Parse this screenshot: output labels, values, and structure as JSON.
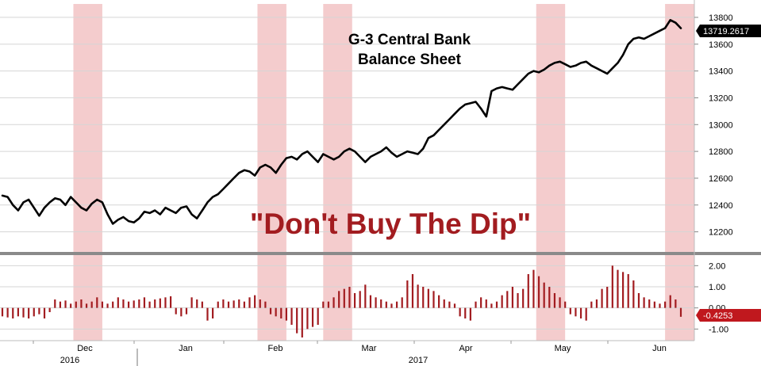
{
  "chart_data": [
    {
      "type": "line",
      "title": "G-3 Central Bank",
      "subtitle": "Balance Sheet",
      "annotation": "\"Don't Buy The Dip\"",
      "ylim": [
        12050,
        13900
      ],
      "yticks": [
        "12200",
        "12400",
        "12600",
        "12800",
        "13000",
        "13200",
        "13400",
        "13600",
        "13800"
      ],
      "last_value_label": "13719.2617",
      "line_color": "#000000",
      "grid": true,
      "x_index_range": [
        0,
        128
      ],
      "series": [
        {
          "values": [
            12470,
            12460,
            12400,
            12360,
            12420,
            12440,
            12380,
            12320,
            12380,
            12420,
            12450,
            12440,
            12400,
            12460,
            12420,
            12380,
            12360,
            12410,
            12440,
            12420,
            12330,
            12260,
            12290,
            12310,
            12280,
            12270,
            12300,
            12350,
            12340,
            12360,
            12330,
            12380,
            12360,
            12340,
            12380,
            12390,
            12330,
            12300,
            12360,
            12420,
            12460,
            12480,
            12520,
            12560,
            12600,
            12640,
            12660,
            12650,
            12620,
            12680,
            12700,
            12680,
            12640,
            12700,
            12750,
            12760,
            12740,
            12780,
            12800,
            12760,
            12720,
            12780,
            12760,
            12740,
            12760,
            12800,
            12820,
            12800,
            12760,
            12720,
            12760,
            12780,
            12800,
            12830,
            12790,
            12760,
            12780,
            12800,
            12790,
            12780,
            12820,
            12900,
            12920,
            12960,
            13000,
            13040,
            13080,
            13120,
            13150,
            13160,
            13170,
            13120,
            13060,
            13250,
            13270,
            13280,
            13270,
            13260,
            13300,
            13340,
            13380,
            13400,
            13390,
            13410,
            13440,
            13460,
            13470,
            13450,
            13430,
            13440,
            13460,
            13470,
            13440,
            13420,
            13400,
            13380,
            13420,
            13460,
            13520,
            13600,
            13640,
            13650,
            13640,
            13660,
            13680,
            13700,
            13720,
            13780,
            13760,
            13719
          ]
        }
      ],
      "highlight_periods": [
        {
          "start": 13.5,
          "end": 19.0
        },
        {
          "start": 48.5,
          "end": 54.0
        },
        {
          "start": 61.0,
          "end": 66.5
        },
        {
          "start": 101.5,
          "end": 107.0
        },
        {
          "start": 126.0,
          "end": 131.5
        }
      ],
      "highlight_color": "#f4cccd"
    },
    {
      "type": "bar",
      "ylim": [
        -1.55,
        2.5
      ],
      "yticks": [
        "-1.00",
        "0.00",
        "1.00",
        "2.00"
      ],
      "last_value_label": "-0.4253",
      "bar_color": "#a21c20",
      "grid": true,
      "series": [
        {
          "values": [
            -0.4,
            -0.45,
            -0.5,
            -0.4,
            -0.45,
            -0.5,
            -0.4,
            -0.3,
            -0.5,
            -0.2,
            0.4,
            0.3,
            0.35,
            0.2,
            0.3,
            0.4,
            0.2,
            0.3,
            0.5,
            0.3,
            0.2,
            0.3,
            0.5,
            0.4,
            0.3,
            0.35,
            0.4,
            0.5,
            0.3,
            0.4,
            0.45,
            0.5,
            0.55,
            -0.3,
            -0.4,
            -0.3,
            0.5,
            0.4,
            0.3,
            -0.6,
            -0.5,
            0.3,
            0.4,
            0.3,
            0.35,
            0.4,
            0.3,
            0.5,
            0.6,
            0.4,
            0.3,
            -0.3,
            -0.4,
            -0.5,
            -0.6,
            -0.8,
            -1.2,
            -1.4,
            -1.0,
            -0.9,
            -0.8,
            0.3,
            0.3,
            0.5,
            0.8,
            0.9,
            1.0,
            0.7,
            0.8,
            1.1,
            0.6,
            0.5,
            0.4,
            0.3,
            0.2,
            0.3,
            0.5,
            1.3,
            1.6,
            1.1,
            1.0,
            0.9,
            0.8,
            0.6,
            0.4,
            0.3,
            0.2,
            -0.4,
            -0.5,
            -0.6,
            0.3,
            0.5,
            0.4,
            0.2,
            0.3,
            0.6,
            0.8,
            1.0,
            0.7,
            0.9,
            1.6,
            1.8,
            1.5,
            1.2,
            1.0,
            0.7,
            0.5,
            0.3,
            -0.3,
            -0.4,
            -0.5,
            -0.6,
            0.3,
            0.4,
            0.9,
            1.0,
            2.0,
            1.8,
            1.7,
            1.6,
            1.3,
            0.7,
            0.5,
            0.4,
            0.3,
            0.2,
            0.3,
            0.6,
            0.4,
            -0.42
          ]
        }
      ]
    }
  ],
  "x_axis": {
    "months": [
      "Dec",
      "Jan",
      "Feb",
      "Mar",
      "Apr",
      "May",
      "Jun"
    ],
    "years": [
      "2016",
      "2017"
    ]
  },
  "colors": {
    "grid": "#d5d5d5",
    "separator": "#888888",
    "tag_bg": "#000000",
    "tag_neg_bg": "#c0181e"
  }
}
